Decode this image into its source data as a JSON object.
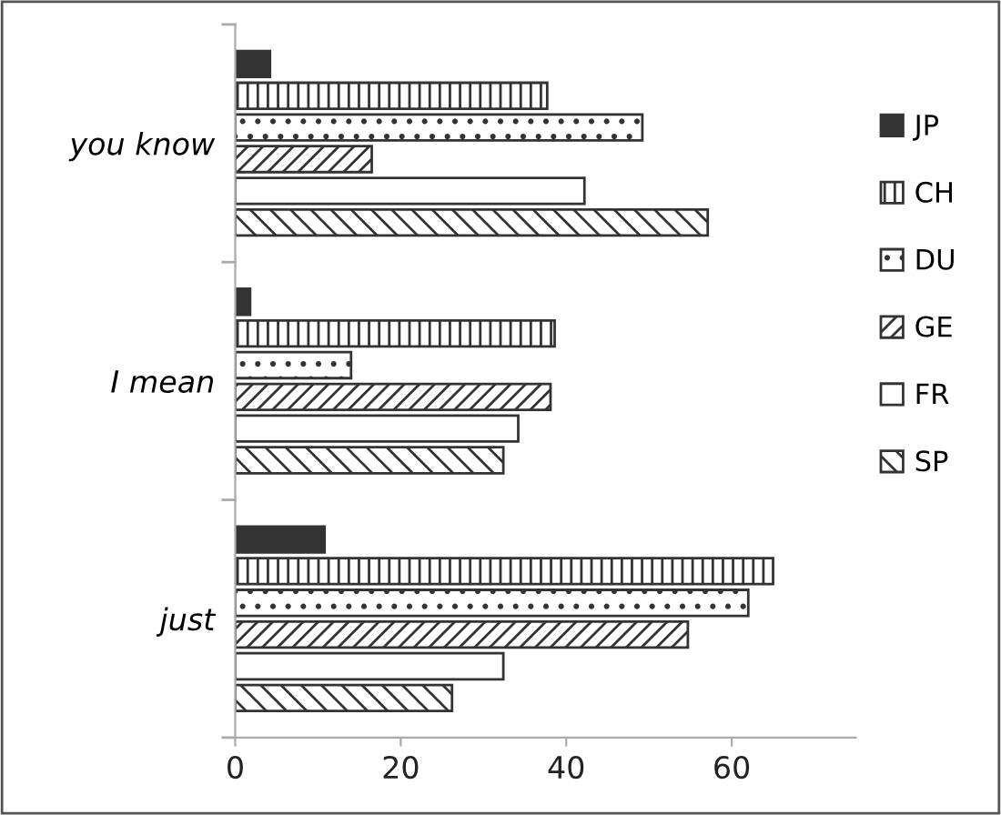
{
  "chart_data": {
    "type": "bar",
    "orientation": "horizontal",
    "categories": [
      "you know",
      "I mean",
      "just"
    ],
    "series": [
      {
        "name": "JP",
        "color": "#333333",
        "values": [
          4.2,
          1.8,
          10.8
        ]
      },
      {
        "name": "CH",
        "color": "#333333",
        "values": [
          37.7,
          38.6,
          65
        ]
      },
      {
        "name": "DU",
        "color": "#333333",
        "values": [
          49.2,
          14.0,
          62
        ]
      },
      {
        "name": "GE",
        "color": "#333333",
        "values": [
          16.5,
          38.1,
          54.7
        ]
      },
      {
        "name": "FR",
        "color": "#ffffff",
        "values": [
          42.2,
          34.2,
          32.4
        ]
      },
      {
        "name": "SP",
        "color": "#333333",
        "values": [
          57.1,
          32.4,
          26.2
        ]
      }
    ],
    "xlim": [
      0,
      75
    ],
    "xticks": [
      0,
      20,
      40,
      60
    ],
    "grid": false,
    "legend": "right"
  }
}
